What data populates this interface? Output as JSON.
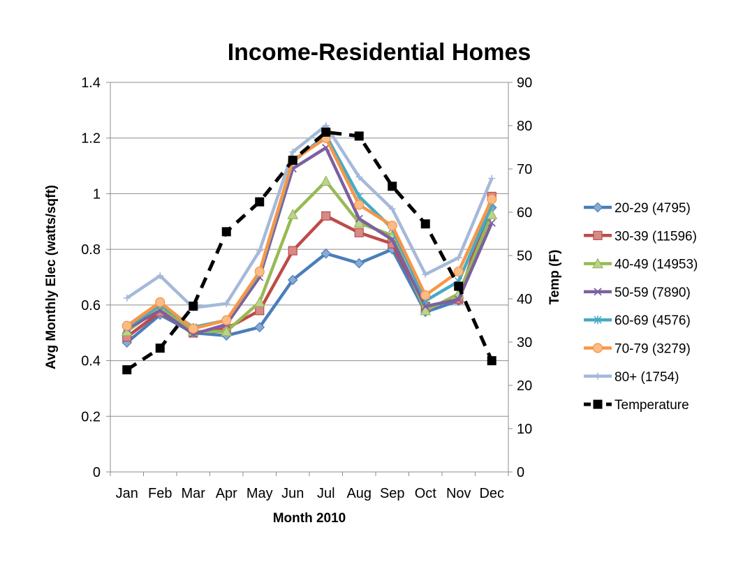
{
  "chart_data": {
    "type": "line",
    "title": "Income-Residential Homes",
    "xlabel": "Month 2010",
    "ylabel": "Avg Monthly Elec (watts/sqft)",
    "y2label": "Temp (F)",
    "categories": [
      "Jan",
      "Feb",
      "Mar",
      "Apr",
      "May",
      "Jun",
      "Jul",
      "Aug",
      "Sep",
      "Oct",
      "Nov",
      "Dec"
    ],
    "ylim": [
      0,
      1.4
    ],
    "yticks": [
      "0",
      "0.2",
      "0.4",
      "0.6",
      "0.8",
      "1",
      "1.2",
      "1.4"
    ],
    "y2lim": [
      0,
      90
    ],
    "y2ticks": [
      "0",
      "10",
      "20",
      "30",
      "40",
      "50",
      "60",
      "70",
      "80",
      "90"
    ],
    "grid": "horizontal",
    "legend_position": "right",
    "series": [
      {
        "name": "20-29 (4795)",
        "axis": "left",
        "color": "#4a7ebb",
        "marker": "diamond",
        "values": [
          0.465,
          0.565,
          0.5,
          0.49,
          0.52,
          0.69,
          0.785,
          0.75,
          0.8,
          0.575,
          0.615,
          0.95
        ]
      },
      {
        "name": "30-39 (11596)",
        "axis": "left",
        "color": "#be4b48",
        "marker": "square",
        "values": [
          0.485,
          0.575,
          0.5,
          0.515,
          0.58,
          0.795,
          0.92,
          0.86,
          0.82,
          0.595,
          0.62,
          0.99
        ]
      },
      {
        "name": "40-49 (14953)",
        "axis": "left",
        "color": "#98b954",
        "marker": "triangle",
        "values": [
          0.505,
          0.59,
          0.505,
          0.505,
          0.61,
          0.925,
          1.045,
          0.895,
          0.85,
          0.58,
          0.64,
          0.925
        ]
      },
      {
        "name": "50-59 (7890)",
        "axis": "left",
        "color": "#7d60a0",
        "marker": "x",
        "values": [
          0.515,
          0.58,
          0.495,
          0.53,
          0.7,
          1.09,
          1.165,
          0.91,
          0.835,
          0.595,
          0.62,
          0.895
        ]
      },
      {
        "name": "60-69 (4576)",
        "axis": "left",
        "color": "#46aac5",
        "marker": "star",
        "values": [
          0.52,
          0.6,
          0.52,
          0.545,
          0.715,
          1.115,
          1.21,
          0.99,
          0.875,
          0.615,
          0.685,
          0.96
        ]
      },
      {
        "name": "70-79 (3279)",
        "axis": "left",
        "color": "#f79646",
        "marker": "circle",
        "values": [
          0.525,
          0.61,
          0.515,
          0.545,
          0.72,
          1.12,
          1.2,
          0.96,
          0.885,
          0.635,
          0.72,
          0.98
        ]
      },
      {
        "name": "80+ (1754)",
        "axis": "left",
        "color": "#a5b9d9",
        "marker": "plus",
        "values": [
          0.625,
          0.705,
          0.59,
          0.605,
          0.795,
          1.15,
          1.245,
          1.06,
          0.945,
          0.71,
          0.77,
          1.055
        ]
      },
      {
        "name": "Temperature",
        "axis": "right",
        "color": "#000000",
        "marker": "square",
        "dashed": true,
        "values": [
          23.6,
          28.6,
          38.3,
          55.5,
          62.4,
          72.0,
          78.5,
          77.6,
          66.0,
          57.3,
          42.9,
          25.7
        ]
      }
    ]
  }
}
